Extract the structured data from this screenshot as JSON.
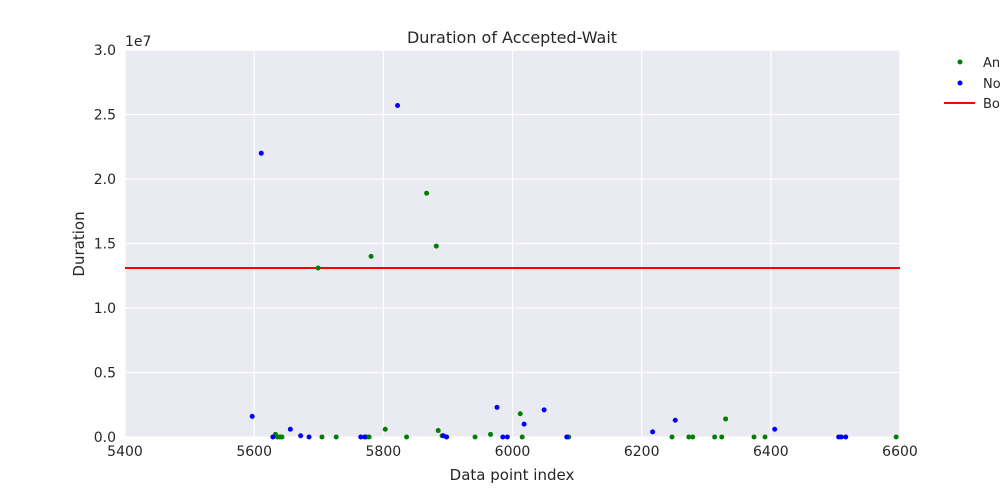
{
  "chart_data": {
    "type": "scatter",
    "title": "Duration of Accepted-Wait",
    "xlabel": "Data point index",
    "ylabel": "Duration",
    "y_scale_label": "1e7",
    "xlim": [
      5400,
      6600
    ],
    "ylim": [
      0,
      30000000
    ],
    "x_ticks": [
      5400,
      5600,
      5800,
      6000,
      6200,
      6400,
      6600
    ],
    "y_ticks": [
      0,
      5000000,
      10000000,
      15000000,
      20000000,
      25000000,
      30000000
    ],
    "y_tick_labels": [
      "0.0",
      "0.5",
      "1.0",
      "1.5",
      "2.0",
      "2.5",
      "3.0"
    ],
    "grid": true,
    "legend_position": "outside-top-right",
    "series": [
      {
        "name": "An",
        "color": "#008000",
        "marker": "dot",
        "points": [
          [
            5633,
            200000
          ],
          [
            5636,
            0
          ],
          [
            5640,
            0
          ],
          [
            5643,
            0
          ],
          [
            5699,
            13100000
          ],
          [
            5705,
            0
          ],
          [
            5727,
            0
          ],
          [
            5774,
            0
          ],
          [
            5778,
            0
          ],
          [
            5781,
            14000000
          ],
          [
            5803,
            600000
          ],
          [
            5836,
            0
          ],
          [
            5867,
            18900000
          ],
          [
            5882,
            14800000
          ],
          [
            5885,
            500000
          ],
          [
            5891,
            100000
          ],
          [
            5942,
            0
          ],
          [
            5966,
            200000
          ],
          [
            6012,
            1800000
          ],
          [
            6015,
            0
          ],
          [
            6087,
            0
          ],
          [
            6247,
            0
          ],
          [
            6273,
            0
          ],
          [
            6279,
            0
          ],
          [
            6313,
            0
          ],
          [
            6324,
            0
          ],
          [
            6330,
            1400000
          ],
          [
            6374,
            0
          ],
          [
            6391,
            0
          ],
          [
            6594,
            0
          ]
        ]
      },
      {
        "name": "No",
        "color": "#0000ff",
        "marker": "dot",
        "points": [
          [
            5597,
            1600000
          ],
          [
            5611,
            22000000
          ],
          [
            5629,
            0
          ],
          [
            5656,
            600000
          ],
          [
            5672,
            100000
          ],
          [
            5685,
            0
          ],
          [
            5765,
            0
          ],
          [
            5771,
            0
          ],
          [
            5822,
            25700000
          ],
          [
            5893,
            100000
          ],
          [
            5898,
            0
          ],
          [
            5976,
            2300000
          ],
          [
            5985,
            0
          ],
          [
            5992,
            0
          ],
          [
            6018,
            1000000
          ],
          [
            6049,
            2100000
          ],
          [
            6084,
            0
          ],
          [
            6217,
            400000
          ],
          [
            6252,
            1300000
          ],
          [
            6406,
            600000
          ],
          [
            6505,
            0
          ],
          [
            6509,
            0
          ],
          [
            6516,
            0
          ]
        ]
      },
      {
        "name": "Bo",
        "color": "#ff0000",
        "marker": "line",
        "hline": 13100000
      }
    ]
  }
}
